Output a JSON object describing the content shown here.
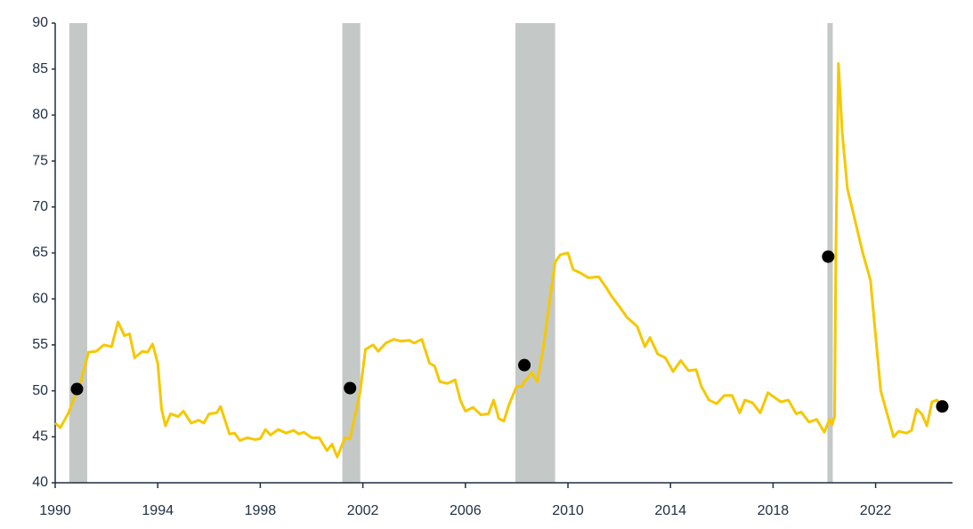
{
  "chart_data": {
    "type": "line",
    "xlim": [
      1990,
      2025
    ],
    "xticks": [
      1990,
      1994,
      1998,
      2002,
      2006,
      2010,
      2014,
      2018,
      2022
    ],
    "ylim": [
      40,
      90
    ],
    "yticks": [
      40,
      45,
      50,
      55,
      60,
      65,
      70,
      75,
      80,
      85,
      90
    ],
    "recessions": [
      [
        1990.55,
        1991.25
      ],
      [
        2001.2,
        2001.9
      ],
      [
        2007.95,
        2009.5
      ],
      [
        2020.12,
        2020.33
      ]
    ],
    "recession_color": "#c4c8c6",
    "series": [
      {
        "color": "#f5c800",
        "x": [
          1990.0,
          1990.2,
          1990.5,
          1990.85,
          1991.0,
          1991.3,
          1991.6,
          1991.9,
          1992.2,
          1992.45,
          1992.7,
          1992.9,
          1993.1,
          1993.4,
          1993.6,
          1993.8,
          1994.0,
          1994.15,
          1994.3,
          1994.5,
          1994.8,
          1995.0,
          1995.3,
          1995.6,
          1995.8,
          1996.0,
          1996.3,
          1996.45,
          1996.6,
          1996.8,
          1997.0,
          1997.2,
          1997.5,
          1997.8,
          1998.0,
          1998.2,
          1998.4,
          1998.7,
          1999.0,
          1999.3,
          1999.5,
          1999.7,
          2000.0,
          2000.3,
          2000.6,
          2000.8,
          2001.0,
          2001.3,
          2001.5,
          2001.75,
          2001.9,
          2002.1,
          2002.4,
          2002.6,
          2002.9,
          2003.2,
          2003.5,
          2003.8,
          2004.0,
          2004.3,
          2004.6,
          2004.8,
          2005.0,
          2005.3,
          2005.6,
          2005.8,
          2006.0,
          2006.3,
          2006.6,
          2006.9,
          2007.1,
          2007.3,
          2007.5,
          2007.7,
          2008.0,
          2008.2,
          2008.3,
          2008.6,
          2008.8,
          2009.0,
          2009.3,
          2009.5,
          2009.7,
          2010.0,
          2010.2,
          2010.5,
          2010.8,
          2011.2,
          2011.5,
          2011.7,
          2012.0,
          2012.3,
          2012.7,
          2013.0,
          2013.2,
          2013.5,
          2013.8,
          2014.1,
          2014.4,
          2014.7,
          2015.0,
          2015.2,
          2015.5,
          2015.8,
          2016.1,
          2016.4,
          2016.7,
          2016.9,
          2017.2,
          2017.5,
          2017.8,
          2018.0,
          2018.3,
          2018.6,
          2018.9,
          2019.1,
          2019.4,
          2019.7,
          2020.0,
          2020.2,
          2020.3,
          2020.4,
          2020.45,
          2020.55,
          2020.7,
          2020.9,
          2021.2,
          2021.5,
          2021.8,
          2022.0,
          2022.2,
          2022.5,
          2022.7,
          2022.9,
          2023.2,
          2023.4,
          2023.6,
          2023.8,
          2024.0,
          2024.2,
          2024.4,
          2024.55
        ],
        "values": [
          46.5,
          46.0,
          47.5,
          50.0,
          51,
          54.2,
          54.3,
          55,
          54.8,
          57.5,
          56,
          56.2,
          53.6,
          54.3,
          54.2,
          55.1,
          53,
          48,
          46.2,
          47.5,
          47.2,
          47.8,
          46.5,
          46.8,
          46.5,
          47.5,
          47.6,
          48.3,
          47,
          45.3,
          45.4,
          44.6,
          44.9,
          44.7,
          44.8,
          45.8,
          45.2,
          45.8,
          45.4,
          45.7,
          45.3,
          45.5,
          44.9,
          44.9,
          43.5,
          44.2,
          42.8,
          44.9,
          44.8,
          48,
          50,
          54.5,
          55,
          54.3,
          55.2,
          55.6,
          55.4,
          55.5,
          55.2,
          55.6,
          53,
          52.7,
          51,
          50.8,
          51.2,
          49,
          47.8,
          48.2,
          47.4,
          47.5,
          49,
          47,
          46.7,
          48.5,
          50.5,
          50.5,
          51,
          52,
          51,
          54,
          60,
          64,
          64.8,
          65,
          63.2,
          62.8,
          62.3,
          62.4,
          61.2,
          60.3,
          59.2,
          58,
          57,
          54.8,
          55.8,
          54,
          53.6,
          52.1,
          53.3,
          52.2,
          52.3,
          50.5,
          49,
          48.6,
          49.5,
          49.5,
          47.6,
          49,
          48.7,
          47.6,
          49.8,
          49.4,
          48.8,
          49,
          47.5,
          47.7,
          46.6,
          46.9,
          45.5,
          46.9,
          46.3,
          47.2,
          65,
          85.6,
          78,
          72,
          68.5,
          65,
          62,
          56,
          50,
          47,
          45,
          45.6,
          45.4,
          45.7,
          48,
          47.5,
          46.2,
          48.8,
          49,
          48.3
        ]
      }
    ],
    "markers": {
      "color": "#000000",
      "x": [
        1990.85,
        2001.5,
        2008.3,
        2020.15,
        2024.6
      ],
      "values": [
        50.2,
        50.3,
        52.8,
        64.6,
        48.3
      ]
    }
  }
}
